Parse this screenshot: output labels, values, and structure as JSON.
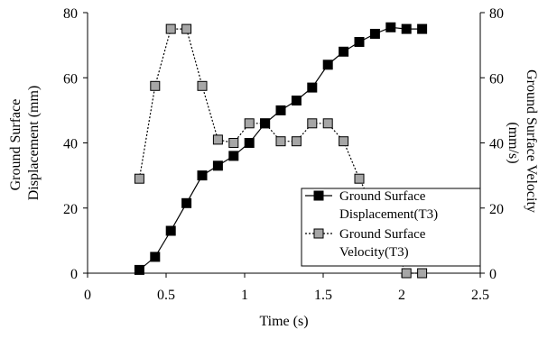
{
  "chart_data": {
    "type": "line",
    "xlabel": "Time (s)",
    "ylabel_left": [
      "Ground Surface",
      "Displacement (mm)"
    ],
    "ylabel_right": [
      "Ground Surface Velocity",
      "(mm/s)"
    ],
    "xlim": [
      0,
      2.5
    ],
    "ylim_left": [
      0,
      80
    ],
    "ylim_right": [
      0,
      80
    ],
    "x_ticks": [
      "0",
      "0.5",
      "1",
      "1.5",
      "2",
      "2.5"
    ],
    "y_ticks_left": [
      "0",
      "20",
      "40",
      "60",
      "80"
    ],
    "y_ticks_right": [
      "0",
      "20",
      "40",
      "60",
      "80"
    ],
    "grid": false,
    "legend_position": "bottom-right",
    "series": [
      {
        "name": "Ground Surface Displacement(T3)",
        "legend_lines": [
          "Ground Surface",
          "Displacement(T3)"
        ],
        "axis": "left",
        "line_style": "solid",
        "marker": "square",
        "marker_color": "#000000",
        "x": [
          0.33,
          0.43,
          0.53,
          0.63,
          0.73,
          0.83,
          0.93,
          1.03,
          1.13,
          1.23,
          1.33,
          1.43,
          1.53,
          1.63,
          1.73,
          1.83,
          1.93,
          2.03,
          2.13
        ],
        "y": [
          1,
          5,
          13,
          21.5,
          30,
          33,
          36,
          40,
          46,
          50,
          53,
          57,
          64,
          68,
          71,
          73.5,
          75.5,
          75,
          75
        ]
      },
      {
        "name": "Ground Surface Velocity(T3)",
        "legend_lines": [
          "Ground Surface",
          "Velocity(T3)"
        ],
        "axis": "right",
        "line_style": "dotted",
        "marker": "square",
        "marker_color": "#a6a6a6",
        "x": [
          0.33,
          0.43,
          0.53,
          0.63,
          0.73,
          0.83,
          0.93,
          1.03,
          1.13,
          1.23,
          1.33,
          1.43,
          1.53,
          1.63,
          1.73,
          2.03,
          2.13
        ],
        "y": [
          29,
          57.5,
          75,
          75,
          57.5,
          41,
          40,
          46,
          46,
          40.5,
          40.5,
          46,
          46,
          40.5,
          29,
          0,
          0
        ]
      }
    ]
  }
}
